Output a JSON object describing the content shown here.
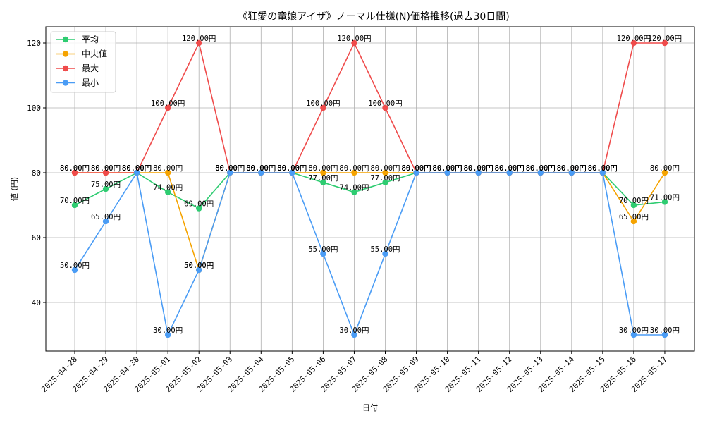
{
  "chart_data": {
    "type": "line",
    "title": "《狂愛の竜娘アイザ》ノーマル仕様(N)価格推移(過去30日間)",
    "xlabel": "日付",
    "ylabel": "値 (円)",
    "ylim": [
      25,
      125
    ],
    "yticks": [
      40,
      60,
      80,
      100,
      120
    ],
    "grid": true,
    "legend_position": "top-left",
    "categories": [
      "2025-04-28",
      "2025-04-29",
      "2025-04-30",
      "2025-05-01",
      "2025-05-02",
      "2025-05-03",
      "2025-05-04",
      "2025-05-05",
      "2025-05-06",
      "2025-05-07",
      "2025-05-08",
      "2025-05-09",
      "2025-05-10",
      "2025-05-11",
      "2025-05-12",
      "2025-05-13",
      "2025-05-14",
      "2025-05-15",
      "2025-05-16",
      "2025-05-17"
    ],
    "label_suffix": "円",
    "series": [
      {
        "name": "平均",
        "color": "#2ecc71",
        "values": [
          70,
          75,
          80,
          74,
          69,
          80,
          80,
          80,
          77,
          74,
          77,
          80,
          80,
          80,
          80,
          80,
          80,
          80,
          70,
          71
        ]
      },
      {
        "name": "中央値",
        "color": "#f5a300",
        "values": [
          80,
          80,
          80,
          80,
          50,
          80,
          80,
          80,
          80,
          80,
          80,
          80,
          80,
          80,
          80,
          80,
          80,
          80,
          65,
          80
        ]
      },
      {
        "name": "最大",
        "color": "#ef4b4b",
        "values": [
          80,
          80,
          80,
          100,
          120,
          80,
          80,
          80,
          100,
          120,
          100,
          80,
          80,
          80,
          80,
          80,
          80,
          80,
          120,
          120
        ]
      },
      {
        "name": "最小",
        "color": "#4a9cf5",
        "values": [
          50,
          65,
          80,
          30,
          50,
          80,
          80,
          80,
          55,
          30,
          55,
          80,
          80,
          80,
          80,
          80,
          80,
          80,
          30,
          30
        ]
      }
    ]
  }
}
